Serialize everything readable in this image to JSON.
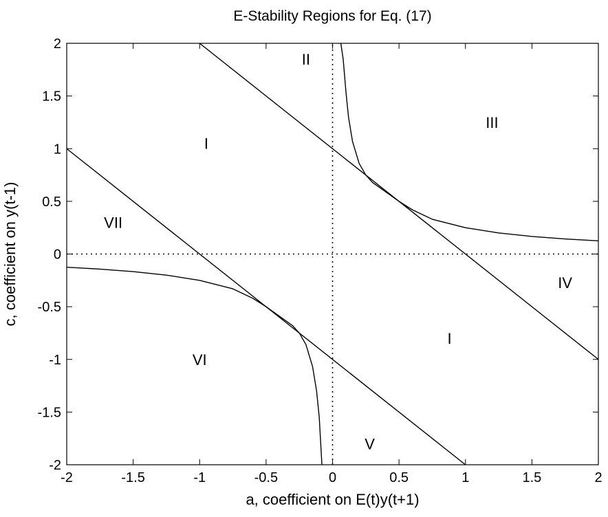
{
  "chart_data": {
    "type": "line",
    "title": "E-Stability Regions for Eq. (17)",
    "xlabel": "a, coefficient on E(t)y(t+1)",
    "ylabel": "c, coefficient on y(t-1)",
    "xlim": [
      -2,
      2
    ],
    "ylim": [
      -2,
      2
    ],
    "xticks": [
      -2,
      -1.5,
      -1,
      -0.5,
      0,
      0.5,
      1,
      1.5,
      2
    ],
    "yticks": [
      -2,
      -1.5,
      -1,
      -0.5,
      0,
      0.5,
      1,
      1.5,
      2
    ],
    "xtick_labels": [
      "-2",
      "-1.5",
      "-1",
      "-0.5",
      "0",
      "0.5",
      "1",
      "1.5",
      "2"
    ],
    "ytick_labels": [
      "-2",
      "-1.5",
      "-1",
      "-0.5",
      "0",
      "0.5",
      "1",
      "1.5",
      "2"
    ],
    "grid": false,
    "series": [
      {
        "style": "solid",
        "x": [
          -1,
          2
        ],
        "y": [
          2,
          -1
        ]
      },
      {
        "style": "solid",
        "x": [
          -2,
          1
        ],
        "y": [
          1,
          -2
        ]
      },
      {
        "style": "solid",
        "x": [
          0.0625,
          0.08,
          0.1,
          0.12,
          0.15,
          0.2,
          0.25,
          0.3,
          0.4,
          0.5,
          0.6,
          0.75,
          1.0,
          1.25,
          1.5,
          1.75,
          2.0
        ],
        "y": [
          2.0,
          1.85,
          1.55,
          1.3,
          1.07,
          0.86,
          0.75,
          0.68,
          0.59,
          0.5,
          0.42,
          0.33,
          0.25,
          0.2,
          0.167,
          0.143,
          0.125
        ]
      },
      {
        "style": "solid",
        "x": [
          -2.0,
          -1.75,
          -1.5,
          -1.25,
          -1.0,
          -0.75,
          -0.6,
          -0.5,
          -0.4,
          -0.3,
          -0.25,
          -0.2,
          -0.15,
          -0.12,
          -0.1,
          -0.08
        ],
        "y": [
          -0.125,
          -0.143,
          -0.167,
          -0.2,
          -0.25,
          -0.33,
          -0.42,
          -0.5,
          -0.59,
          -0.68,
          -0.75,
          -0.86,
          -1.07,
          -1.3,
          -1.55,
          -2.0
        ]
      },
      {
        "style": "dotted",
        "x": [
          0,
          0
        ],
        "y": [
          -2,
          2
        ]
      },
      {
        "style": "dotted",
        "x": [
          -2,
          2
        ],
        "y": [
          0,
          0
        ]
      }
    ],
    "annotations": [
      {
        "text": "I",
        "x": -0.95,
        "y": 1.05
      },
      {
        "text": "II",
        "x": -0.2,
        "y": 1.85
      },
      {
        "text": "III",
        "x": 1.2,
        "y": 1.25
      },
      {
        "text": "IV",
        "x": 1.75,
        "y": -0.27
      },
      {
        "text": "I",
        "x": 0.88,
        "y": -0.8
      },
      {
        "text": "V",
        "x": 0.28,
        "y": -1.8
      },
      {
        "text": "VI",
        "x": -1.0,
        "y": -1.0
      },
      {
        "text": "VII",
        "x": -1.65,
        "y": 0.3
      }
    ]
  }
}
